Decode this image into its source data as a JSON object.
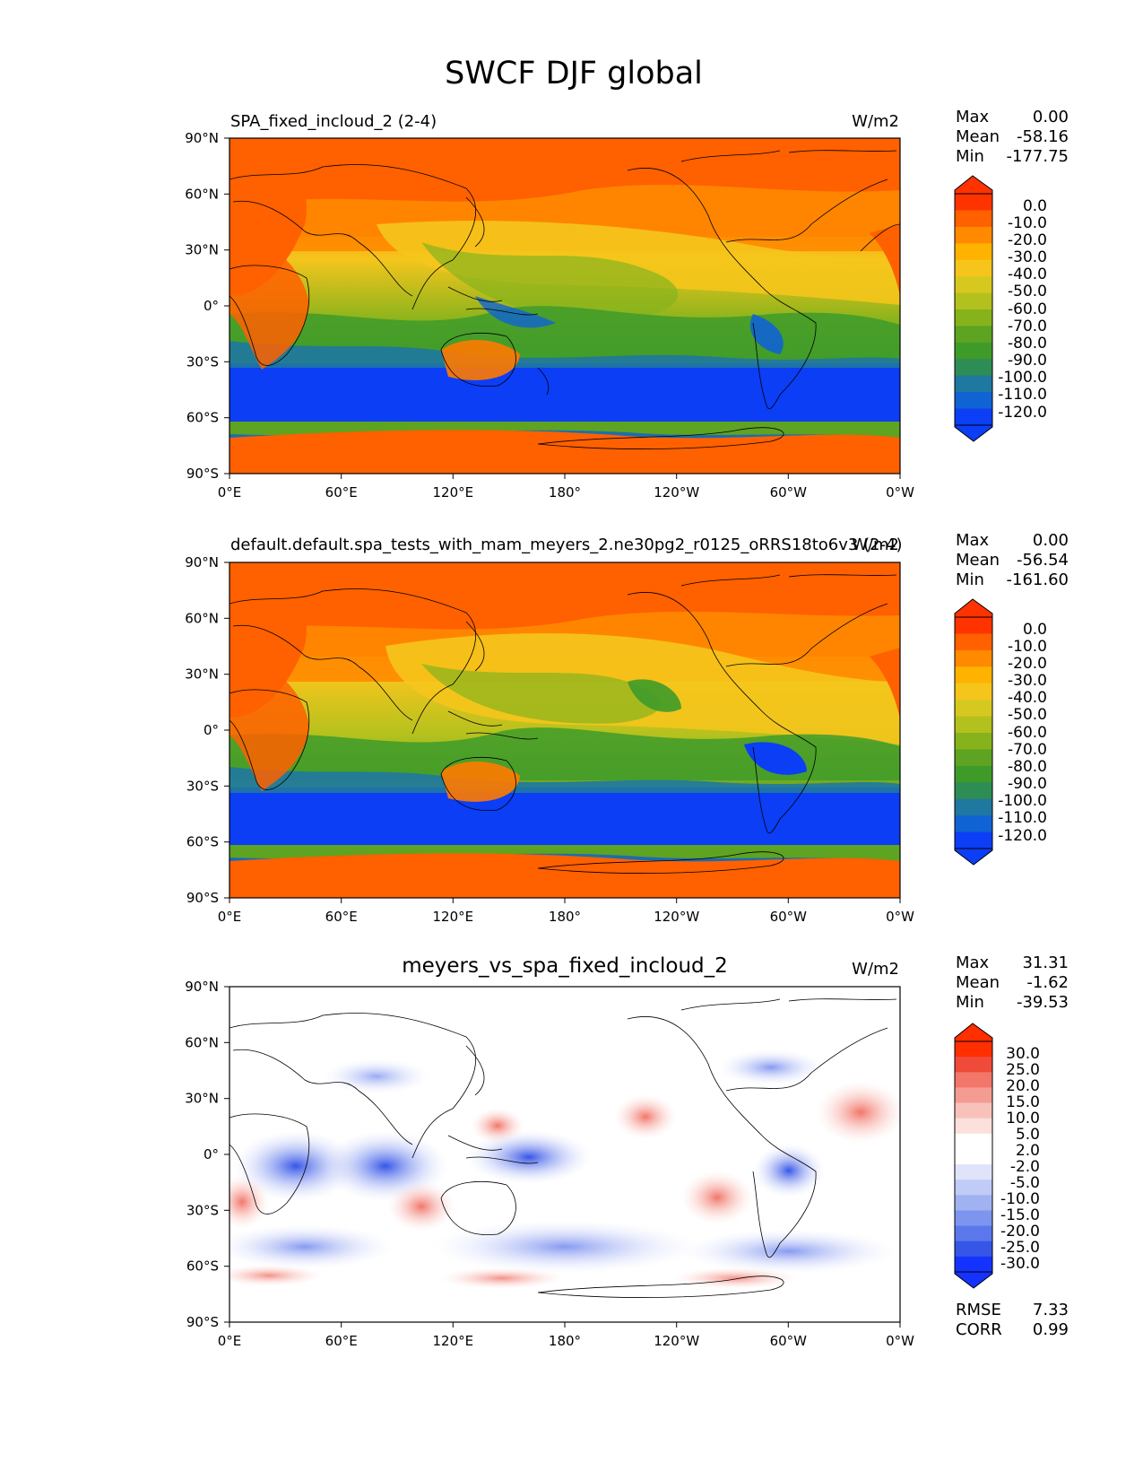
{
  "figure_title": "SWCF DJF global",
  "colors": {
    "abs_levels": [
      "#ff3300",
      "#ff6000",
      "#ff8a00",
      "#ffb300",
      "#f5c51c",
      "#d7c81f",
      "#b2c11e",
      "#86b31c",
      "#5ea321",
      "#3e9b2a",
      "#2d8d55",
      "#1f78a0",
      "#1063d3",
      "#0b3ef5"
    ],
    "diff_levels": [
      "#ff2f00",
      "#f04b3a",
      "#f2766a",
      "#f59c92",
      "#f8c2bb",
      "#fbe0dc",
      "#ffffff",
      "#ffffff",
      "#dfe4fb",
      "#c0cbf7",
      "#a1b2f3",
      "#7d95ef",
      "#5a78eb",
      "#3656e7",
      "#1533ff"
    ],
    "coast": "#000000"
  },
  "chart_data": [
    {
      "type": "heatmap",
      "name": "test",
      "title": "SPA_fixed_incloud_2 (2-4)",
      "units": "W/m2",
      "x_ticks": [
        "0°E",
        "60°E",
        "120°E",
        "180°",
        "120°W",
        "60°W",
        "0°W"
      ],
      "y_ticks": [
        "90°N",
        "60°N",
        "30°N",
        "0°",
        "30°S",
        "60°S",
        "90°S"
      ],
      "xlim": [
        0,
        360
      ],
      "ylim": [
        -90,
        90
      ],
      "stats": [
        {
          "label": "Max",
          "value": "0.00"
        },
        {
          "label": "Mean",
          "value": "-58.16"
        },
        {
          "label": "Min",
          "value": "-177.75"
        }
      ],
      "colorbar_levels": [
        "0.0",
        "-10.0",
        "-20.0",
        "-30.0",
        "-40.0",
        "-50.0",
        "-60.0",
        "-70.0",
        "-80.0",
        "-90.0",
        "-100.0",
        "-110.0",
        "-120.0"
      ],
      "colorbar_extend": "both"
    },
    {
      "type": "heatmap",
      "name": "reference",
      "title": "default.default.spa_tests_with_mam_meyers_2.ne30pg2_r0125_oRRS18to6v3 (2-4)",
      "units": "W/m2",
      "x_ticks": [
        "0°E",
        "60°E",
        "120°E",
        "180°",
        "120°W",
        "60°W",
        "0°W"
      ],
      "y_ticks": [
        "90°N",
        "60°N",
        "30°N",
        "0°",
        "30°S",
        "60°S",
        "90°S"
      ],
      "xlim": [
        0,
        360
      ],
      "ylim": [
        -90,
        90
      ],
      "stats": [
        {
          "label": "Max",
          "value": "0.00"
        },
        {
          "label": "Mean",
          "value": "-56.54"
        },
        {
          "label": "Min",
          "value": "-161.60"
        }
      ],
      "colorbar_levels": [
        "0.0",
        "-10.0",
        "-20.0",
        "-30.0",
        "-40.0",
        "-50.0",
        "-60.0",
        "-70.0",
        "-80.0",
        "-90.0",
        "-100.0",
        "-110.0",
        "-120.0"
      ],
      "colorbar_extend": "both"
    },
    {
      "type": "heatmap",
      "name": "difference",
      "title": "meyers_vs_spa_fixed_incloud_2",
      "units": "W/m2",
      "x_ticks": [
        "0°E",
        "60°E",
        "120°E",
        "180°",
        "120°W",
        "60°W",
        "0°W"
      ],
      "y_ticks": [
        "90°N",
        "60°N",
        "30°N",
        "0°",
        "30°S",
        "60°S",
        "90°S"
      ],
      "xlim": [
        0,
        360
      ],
      "ylim": [
        -90,
        90
      ],
      "stats": [
        {
          "label": "Max",
          "value": "31.31"
        },
        {
          "label": "Mean",
          "value": "-1.62"
        },
        {
          "label": "Min",
          "value": "-39.53"
        }
      ],
      "colorbar_levels": [
        "30.0",
        "25.0",
        "20.0",
        "15.0",
        "10.0",
        "5.0",
        "2.0",
        "-2.0",
        "-5.0",
        "-10.0",
        "-15.0",
        "-20.0",
        "-25.0",
        "-30.0"
      ],
      "colorbar_extend": "both",
      "extra_stats": [
        {
          "label": "RMSE",
          "value": "7.33"
        },
        {
          "label": "CORR",
          "value": "0.99"
        }
      ]
    }
  ]
}
